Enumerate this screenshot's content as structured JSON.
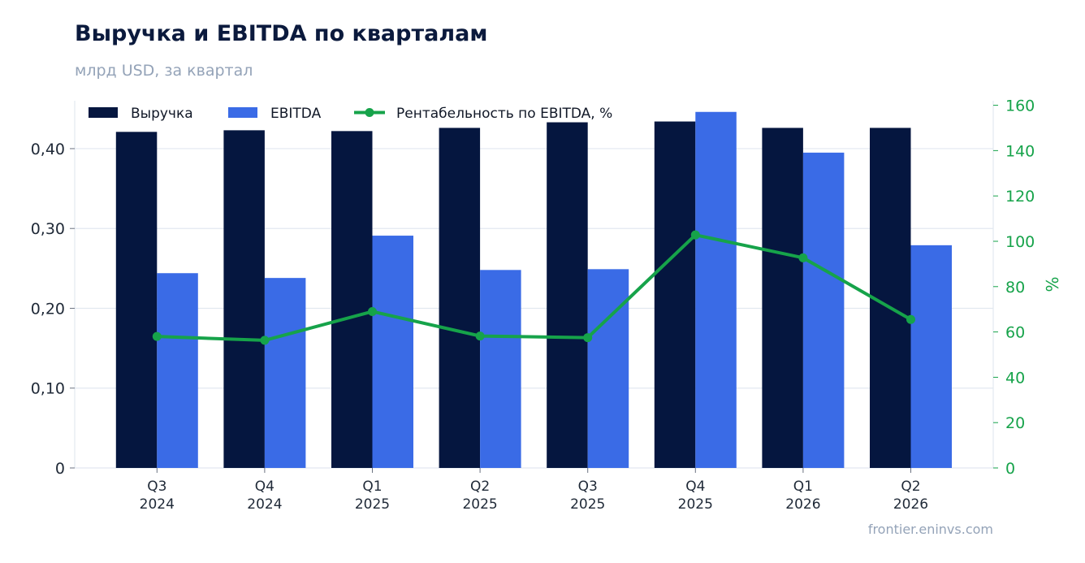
{
  "header": {
    "title": "Выручка и EBITDA по кварталам",
    "subtitle": "млрд USD, за квартал"
  },
  "footer": {
    "source": "frontier.eninvs.com"
  },
  "colors": {
    "revenue": "#05163f",
    "ebitda": "#3a6be6",
    "margin": "#16a34a",
    "grid": "#e2e8f0",
    "axis_text": "#1f2937"
  },
  "chart_data": {
    "type": "bar",
    "categories": [
      [
        "Q3",
        "2024"
      ],
      [
        "Q4",
        "2024"
      ],
      [
        "Q1",
        "2025"
      ],
      [
        "Q2",
        "2025"
      ],
      [
        "Q3",
        "2025"
      ],
      [
        "Q4",
        "2025"
      ],
      [
        "Q1",
        "2026"
      ],
      [
        "Q2",
        "2026"
      ]
    ],
    "series": [
      {
        "name": "Выручка",
        "type": "bar",
        "axis": "left",
        "values": [
          0.421,
          0.423,
          0.422,
          0.426,
          0.433,
          0.434,
          0.426,
          0.426
        ]
      },
      {
        "name": "EBITDA",
        "type": "bar",
        "axis": "left",
        "values": [
          0.244,
          0.238,
          0.291,
          0.248,
          0.249,
          0.446,
          0.395,
          0.279
        ]
      },
      {
        "name": "Рентабельность по EBITDA, %",
        "type": "line",
        "axis": "right",
        "values": [
          58.0,
          56.3,
          69.0,
          58.2,
          57.5,
          102.8,
          92.7,
          65.5
        ]
      }
    ],
    "y_left": {
      "ylim": [
        0,
        0.46
      ],
      "ticks": [
        0,
        0.1,
        0.2,
        0.3,
        0.4
      ],
      "tick_labels": [
        "0",
        "0,10",
        "0,20",
        "0,30",
        "0,40"
      ],
      "grid": true
    },
    "y_right": {
      "ylim": [
        0,
        162
      ],
      "ticks": [
        0,
        20,
        40,
        60,
        80,
        100,
        120,
        140,
        160
      ],
      "tick_labels": [
        "0",
        "20",
        "40",
        "60",
        "80",
        "100",
        "120",
        "140",
        "160"
      ],
      "label": "%"
    },
    "legend": {
      "position": "top-left",
      "orientation": "horizontal"
    }
  }
}
